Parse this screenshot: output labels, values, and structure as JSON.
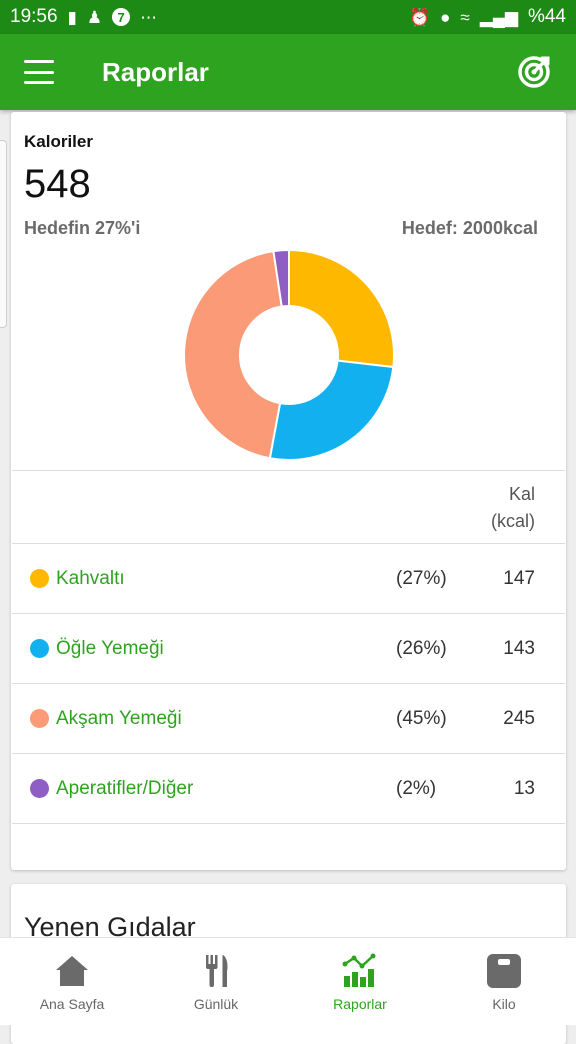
{
  "status": {
    "time": "19:56",
    "battery": "%44"
  },
  "appbar": {
    "title": "Raporlar"
  },
  "calories": {
    "label": "Kaloriler",
    "value": "548",
    "goal_percent_text": "Hedefin 27%'i",
    "goal_text": "Hedef: 2000kcal"
  },
  "chart_data": {
    "type": "pie",
    "categories": [
      "Kahvaltı",
      "Öğle Yemeği",
      "Akşam Yemeği",
      "Aperatifler/Diğer"
    ],
    "values": [
      147,
      143,
      245,
      13
    ],
    "colors": [
      "#FFB800",
      "#13B0F0",
      "#FA9A76",
      "#8E5EC4"
    ]
  },
  "table": {
    "header_kal": "Kal",
    "header_unit": "(kcal)",
    "rows": [
      {
        "meal": "Kahvaltı",
        "percent": "(27%)",
        "kcal": "147",
        "color": "#FFB800"
      },
      {
        "meal": "Öğle Yemeği",
        "percent": "(26%)",
        "kcal": "143",
        "color": "#13B0F0"
      },
      {
        "meal": "Akşam Yemeği",
        "percent": "(45%)",
        "kcal": "245",
        "color": "#FA9A76"
      },
      {
        "meal": "Aperatifler/Diğer",
        "percent": "(2%)",
        "kcal": "13",
        "color": "#8E5EC4"
      }
    ]
  },
  "foods": {
    "title": "Yenen Gıdalar"
  },
  "bottom_nav": {
    "items": [
      {
        "label": "Ana Sayfa",
        "icon": "home-icon"
      },
      {
        "label": "Günlük",
        "icon": "fork-knife-icon"
      },
      {
        "label": "Raporlar",
        "icon": "reports-chart-icon"
      },
      {
        "label": "Kilo",
        "icon": "scale-icon"
      }
    ]
  },
  "colors": {
    "primary": "#2ea31f",
    "status_bar": "#1e8a16"
  }
}
